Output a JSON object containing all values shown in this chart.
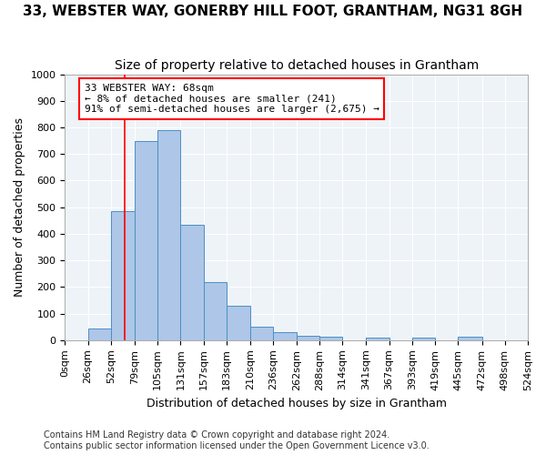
{
  "title1": "33, WEBSTER WAY, GONERBY HILL FOOT, GRANTHAM, NG31 8GH",
  "title2": "Size of property relative to detached houses in Grantham",
  "xlabel": "Distribution of detached houses by size in Grantham",
  "ylabel": "Number of detached properties",
  "bar_color": "#aec6e8",
  "bar_edge_color": "#4a90c4",
  "background_color": "#eef3f8",
  "grid_color": "white",
  "annotation_line_color": "red",
  "property_size": 68,
  "annotation_text": "33 WEBSTER WAY: 68sqm\n← 8% of detached houses are smaller (241)\n91% of semi-detached houses are larger (2,675) →",
  "bin_edges": [
    0,
    26,
    52,
    79,
    105,
    131,
    157,
    183,
    210,
    236,
    262,
    288,
    314,
    341,
    367,
    393,
    419,
    445,
    472,
    498,
    524
  ],
  "bin_labels": [
    "0sqm",
    "26sqm",
    "52sqm",
    "79sqm",
    "105sqm",
    "131sqm",
    "157sqm",
    "183sqm",
    "210sqm",
    "236sqm",
    "262sqm",
    "288sqm",
    "314sqm",
    "341sqm",
    "367sqm",
    "393sqm",
    "419sqm",
    "445sqm",
    "472sqm",
    "498sqm",
    "524sqm"
  ],
  "counts": [
    0,
    45,
    485,
    750,
    790,
    435,
    220,
    128,
    52,
    30,
    18,
    12,
    0,
    8,
    0,
    11,
    0,
    12,
    0,
    0
  ],
  "ylim": [
    0,
    1000
  ],
  "yticks": [
    0,
    100,
    200,
    300,
    400,
    500,
    600,
    700,
    800,
    900,
    1000
  ],
  "footer_text": "Contains HM Land Registry data © Crown copyright and database right 2024.\nContains public sector information licensed under the Open Government Licence v3.0.",
  "title1_fontsize": 11,
  "title2_fontsize": 10,
  "xlabel_fontsize": 9,
  "ylabel_fontsize": 9,
  "tick_fontsize": 8,
  "annot_fontsize": 8,
  "footer_fontsize": 7
}
